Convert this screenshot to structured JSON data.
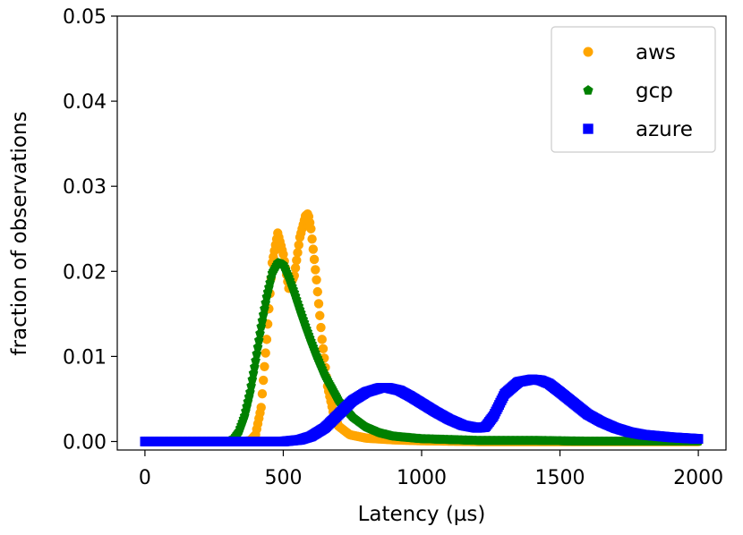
{
  "chart_data": {
    "type": "scatter",
    "title": "",
    "xlabel": "Latency (µs)",
    "ylabel": "fraction of observations",
    "xlim": [
      -100,
      2100
    ],
    "ylim": [
      -0.001,
      0.05
    ],
    "xticks": [
      0,
      500,
      1000,
      1500,
      2000
    ],
    "xtick_labels": [
      "0",
      "500",
      "1000",
      "1500",
      "2000"
    ],
    "yticks": [
      0.0,
      0.01,
      0.02,
      0.03,
      0.04,
      0.05
    ],
    "ytick_labels": [
      "0.00",
      "0.01",
      "0.02",
      "0.03",
      "0.04",
      "0.05"
    ],
    "grid": false,
    "legend": "top-right",
    "x_range": [
      0,
      2000
    ],
    "series": [
      {
        "name": "aws",
        "color": "#ffa500",
        "marker": "circle",
        "x": [
          0,
          350,
          380,
          400,
          420,
          440,
          460,
          480,
          500,
          520,
          540,
          560,
          580,
          590,
          600,
          620,
          640,
          660,
          680,
          700,
          740,
          800,
          900,
          1000,
          1200,
          1500,
          2000
        ],
        "y": [
          0.0,
          0.0,
          0.0001,
          0.0008,
          0.004,
          0.012,
          0.021,
          0.0245,
          0.022,
          0.018,
          0.0195,
          0.024,
          0.0265,
          0.0268,
          0.025,
          0.019,
          0.012,
          0.0065,
          0.0035,
          0.0018,
          0.0008,
          0.0004,
          0.0002,
          0.0001,
          0.0,
          0.0,
          0.0
        ]
      },
      {
        "name": "gcp",
        "color": "#008000",
        "marker": "pentagon",
        "x": [
          0,
          300,
          320,
          340,
          360,
          380,
          400,
          420,
          440,
          460,
          480,
          500,
          520,
          540,
          560,
          580,
          600,
          620,
          650,
          700,
          750,
          800,
          850,
          900,
          1000,
          1100,
          1200,
          1400,
          1600,
          2000
        ],
        "y": [
          0.0,
          0.0,
          0.0003,
          0.0012,
          0.003,
          0.0058,
          0.0095,
          0.0135,
          0.017,
          0.0198,
          0.021,
          0.0208,
          0.0193,
          0.0175,
          0.0155,
          0.0136,
          0.0118,
          0.0101,
          0.0078,
          0.0048,
          0.0029,
          0.0017,
          0.001,
          0.0006,
          0.0003,
          0.0002,
          0.0001,
          0.0001,
          0.0,
          0.0
        ]
      },
      {
        "name": "azure",
        "color": "#0000ff",
        "marker": "square",
        "x": [
          0,
          500,
          560,
          600,
          650,
          700,
          750,
          800,
          850,
          880,
          920,
          960,
          1000,
          1050,
          1100,
          1150,
          1200,
          1230,
          1260,
          1300,
          1350,
          1400,
          1430,
          1460,
          1500,
          1550,
          1600,
          1650,
          1700,
          1750,
          1800,
          1900,
          2000
        ],
        "y": [
          0.0,
          0.0,
          0.0002,
          0.0006,
          0.0016,
          0.0032,
          0.0048,
          0.0058,
          0.0063,
          0.0063,
          0.006,
          0.0053,
          0.0045,
          0.0035,
          0.0026,
          0.0019,
          0.0016,
          0.0017,
          0.003,
          0.0056,
          0.007,
          0.0073,
          0.0072,
          0.0068,
          0.0058,
          0.0045,
          0.0032,
          0.0023,
          0.0016,
          0.0011,
          0.0008,
          0.0005,
          0.0003
        ]
      }
    ]
  }
}
